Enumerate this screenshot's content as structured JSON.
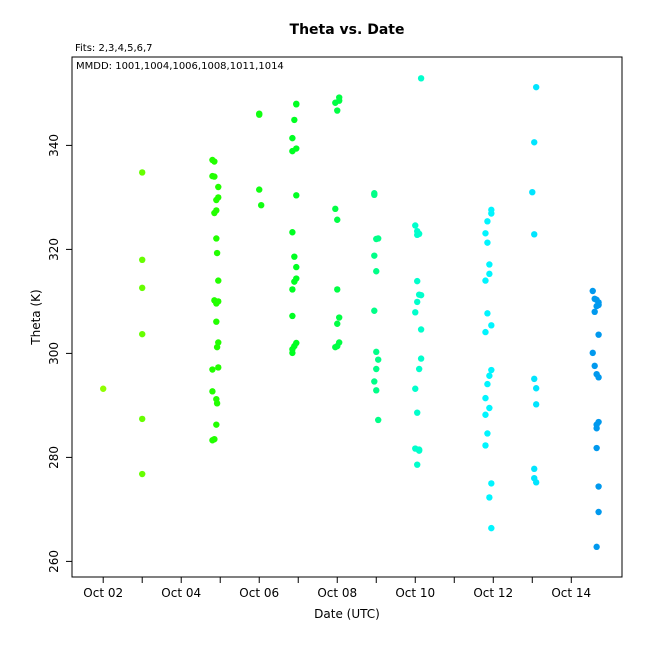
{
  "chart_data": {
    "type": "scatter",
    "title": "Theta  vs. Date",
    "subtitle_fits": "Fits: 2,3,4,5,6,7",
    "subtitle_mmdd": "MMDD: 1001,1004,1006,1008,1011,1014",
    "xlabel": "Date (UTC)",
    "ylabel": "Theta (K)",
    "x_unit": "day of October 2016",
    "xlim": [
      1.2,
      15.3
    ],
    "ylim": [
      257,
      357
    ],
    "x_ticks": [
      2,
      3,
      4,
      5,
      6,
      7,
      8,
      9,
      10,
      11,
      12,
      13,
      14
    ],
    "x_tick_labels": {
      "2": "Oct 02",
      "4": "Oct 04",
      "6": "Oct 06",
      "8": "Oct 08",
      "10": "Oct 10",
      "12": "Oct 12",
      "14": "Oct 14"
    },
    "y_ticks": [
      260,
      280,
      300,
      320,
      340
    ],
    "grid": false,
    "series": [
      {
        "color": "#8fff00",
        "points": [
          [
            2.0,
            293.2
          ]
        ]
      },
      {
        "color": "#66ff00",
        "points": [
          [
            3.0,
            334.8
          ],
          [
            3.0,
            318.0
          ],
          [
            3.0,
            312.6
          ],
          [
            3.0,
            303.7
          ],
          [
            3.0,
            287.4
          ],
          [
            3.0,
            276.8
          ]
        ]
      },
      {
        "color": "#22ff00",
        "points": [
          [
            4.8,
            337.2
          ],
          [
            4.85,
            336.9
          ],
          [
            4.8,
            334.1
          ],
          [
            4.85,
            334.0
          ],
          [
            4.95,
            332.0
          ],
          [
            4.95,
            330.0
          ],
          [
            4.9,
            329.5
          ],
          [
            4.9,
            327.5
          ],
          [
            4.85,
            327.0
          ],
          [
            4.9,
            322.1
          ],
          [
            4.92,
            319.3
          ],
          [
            4.95,
            314.0
          ],
          [
            4.85,
            310.2
          ],
          [
            4.9,
            309.6
          ],
          [
            4.95,
            310.0
          ],
          [
            4.9,
            306.1
          ],
          [
            4.95,
            302.1
          ],
          [
            4.92,
            301.2
          ],
          [
            4.95,
            297.3
          ],
          [
            4.8,
            296.9
          ],
          [
            4.8,
            292.7
          ],
          [
            4.9,
            291.2
          ],
          [
            4.92,
            290.4
          ],
          [
            4.9,
            286.3
          ],
          [
            4.85,
            283.5
          ],
          [
            4.8,
            283.3
          ]
        ]
      },
      {
        "color": "#11ff11",
        "points": [
          [
            6.0,
            346.1
          ],
          [
            6.0,
            345.9
          ],
          [
            6.0,
            331.5
          ],
          [
            6.05,
            328.5
          ]
        ]
      },
      {
        "color": "#00ff22",
        "points": [
          [
            6.95,
            347.9
          ],
          [
            6.95,
            348.0
          ],
          [
            6.9,
            344.9
          ],
          [
            6.85,
            341.4
          ],
          [
            6.95,
            339.4
          ],
          [
            6.85,
            338.9
          ],
          [
            6.95,
            330.4
          ],
          [
            6.85,
            323.3
          ],
          [
            6.9,
            318.6
          ],
          [
            6.95,
            316.6
          ],
          [
            6.95,
            314.4
          ],
          [
            6.9,
            313.8
          ],
          [
            6.85,
            312.3
          ],
          [
            6.85,
            307.2
          ],
          [
            6.95,
            302.0
          ],
          [
            6.9,
            301.4
          ],
          [
            6.85,
            300.8
          ],
          [
            6.85,
            300.1
          ]
        ]
      },
      {
        "color": "#00ff44",
        "points": [
          [
            7.95,
            348.2
          ],
          [
            8.05,
            349.2
          ],
          [
            8.05,
            348.6
          ],
          [
            8.0,
            346.7
          ],
          [
            7.95,
            327.8
          ],
          [
            8.0,
            325.7
          ],
          [
            8.0,
            312.3
          ],
          [
            8.05,
            306.9
          ],
          [
            8.0,
            305.7
          ],
          [
            8.05,
            302.1
          ],
          [
            8.0,
            301.4
          ],
          [
            7.95,
            301.2
          ]
        ]
      },
      {
        "color": "#00ff88",
        "points": [
          [
            8.95,
            330.8
          ],
          [
            8.95,
            330.5
          ],
          [
            9.05,
            322.1
          ],
          [
            9.0,
            322.0
          ],
          [
            8.95,
            318.8
          ],
          [
            9.0,
            315.8
          ],
          [
            8.95,
            308.2
          ],
          [
            9.0,
            300.3
          ],
          [
            9.05,
            298.8
          ],
          [
            9.0,
            297.0
          ],
          [
            8.95,
            294.6
          ],
          [
            9.0,
            292.9
          ],
          [
            9.05,
            287.2
          ]
        ]
      },
      {
        "color": "#00ffcc",
        "points": [
          [
            10.15,
            352.9
          ],
          [
            10.0,
            324.6
          ],
          [
            10.05,
            323.5
          ],
          [
            10.1,
            323.0
          ],
          [
            10.05,
            322.8
          ],
          [
            10.05,
            313.9
          ],
          [
            10.15,
            311.2
          ],
          [
            10.1,
            311.3
          ],
          [
            10.05,
            309.9
          ],
          [
            10.0,
            307.9
          ],
          [
            10.15,
            304.6
          ],
          [
            10.15,
            299.0
          ],
          [
            10.1,
            297.0
          ],
          [
            10.0,
            293.2
          ],
          [
            10.05,
            288.6
          ],
          [
            10.0,
            281.7
          ],
          [
            10.1,
            281.3
          ],
          [
            10.1,
            281.5
          ],
          [
            10.05,
            278.6
          ]
        ]
      },
      {
        "color": "#00f5ff",
        "points": [
          [
            11.95,
            327.6
          ],
          [
            11.95,
            326.9
          ],
          [
            11.85,
            325.4
          ],
          [
            11.8,
            323.1
          ],
          [
            11.85,
            321.3
          ],
          [
            11.9,
            317.1
          ],
          [
            11.9,
            315.3
          ],
          [
            11.8,
            314.0
          ],
          [
            11.85,
            307.7
          ],
          [
            11.95,
            305.4
          ],
          [
            11.8,
            304.1
          ],
          [
            11.95,
            296.8
          ],
          [
            11.9,
            295.7
          ],
          [
            11.85,
            294.1
          ],
          [
            11.8,
            291.4
          ],
          [
            11.9,
            289.5
          ],
          [
            11.8,
            288.2
          ],
          [
            11.85,
            284.6
          ],
          [
            11.8,
            282.3
          ],
          [
            11.95,
            275.0
          ],
          [
            11.9,
            272.3
          ],
          [
            11.95,
            266.4
          ]
        ]
      },
      {
        "color": "#00e5ff",
        "points": [
          [
            13.1,
            351.2
          ],
          [
            13.05,
            340.6
          ],
          [
            13.0,
            331.0
          ],
          [
            13.05,
            322.9
          ],
          [
            13.05,
            295.1
          ],
          [
            13.1,
            293.3
          ],
          [
            13.1,
            290.2
          ],
          [
            13.05,
            277.8
          ],
          [
            13.05,
            276.0
          ],
          [
            13.1,
            275.2
          ]
        ]
      },
      {
        "color": "#0099ee",
        "points": [
          [
            14.55,
            312.0
          ],
          [
            14.6,
            310.5
          ],
          [
            14.65,
            310.3
          ],
          [
            14.7,
            309.8
          ],
          [
            14.7,
            309.3
          ],
          [
            14.65,
            309.1
          ],
          [
            14.6,
            308.0
          ],
          [
            14.7,
            303.6
          ],
          [
            14.55,
            300.1
          ],
          [
            14.6,
            297.6
          ],
          [
            14.65,
            296.0
          ],
          [
            14.7,
            295.4
          ],
          [
            14.7,
            286.8
          ],
          [
            14.65,
            286.3
          ],
          [
            14.65,
            285.6
          ],
          [
            14.65,
            281.8
          ],
          [
            14.7,
            274.4
          ],
          [
            14.7,
            269.5
          ],
          [
            14.65,
            262.8
          ]
        ]
      }
    ]
  }
}
